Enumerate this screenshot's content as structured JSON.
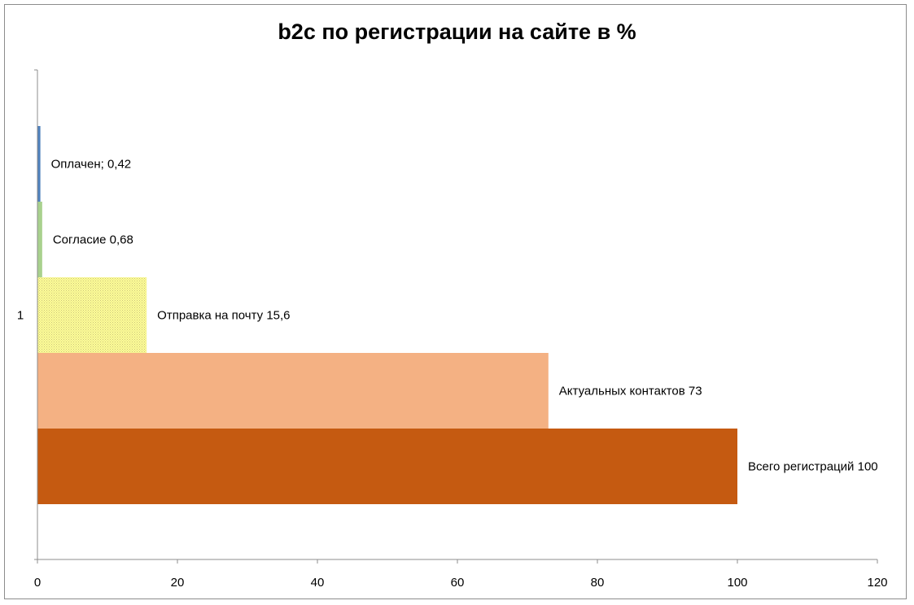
{
  "chart_data": {
    "type": "bar",
    "orientation": "horizontal",
    "title": "b2c по регистрации на сайте в %",
    "categories": [
      "1"
    ],
    "xlim": [
      0,
      120
    ],
    "x_ticks": [
      "0",
      "20",
      "40",
      "60",
      "80",
      "100",
      "120"
    ],
    "grid": false,
    "series": [
      {
        "label": "Оплачен; 0,42",
        "value": 0.42,
        "color": "#4f81bd",
        "fill": "solid"
      },
      {
        "label": "Согласие 0,68",
        "value": 0.68,
        "color": "#a9d18e",
        "fill": "solid"
      },
      {
        "label": "Отправка на почту 15,6",
        "value": 15.6,
        "color": "#ffff99",
        "fill": "dotted"
      },
      {
        "label": "Актуальных контактов 73",
        "value": 73,
        "color": "#f4b183",
        "fill": "solid"
      },
      {
        "label": "Всего регистраций 100",
        "value": 100,
        "color": "#c55a11",
        "fill": "solid"
      }
    ]
  }
}
